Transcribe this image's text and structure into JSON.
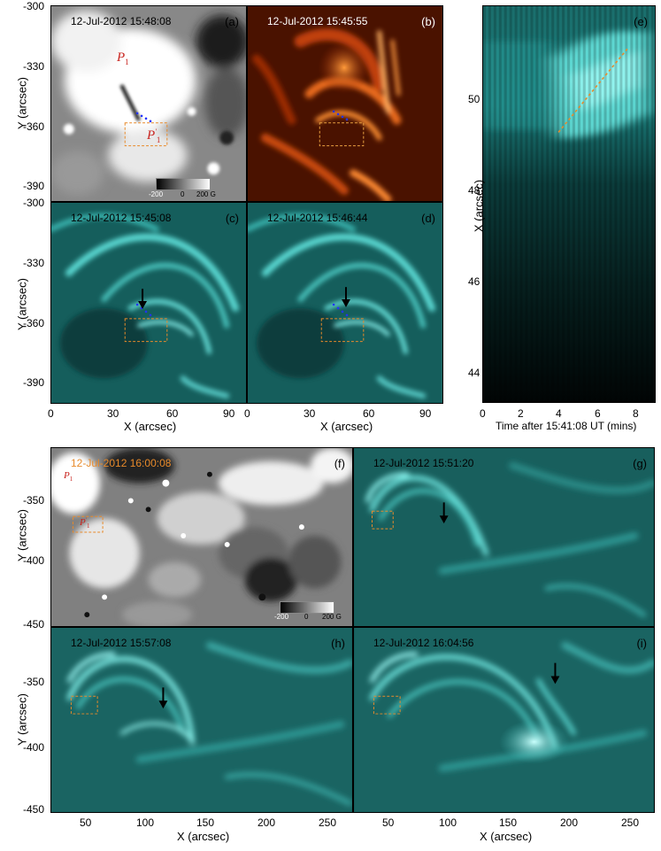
{
  "panels": {
    "a": {
      "timestamp": "12-Jul-2012 15:48:08",
      "label": "(a)",
      "annot_p1": "P",
      "annot_p1_sub": "1",
      "annot_p1p": "P",
      "annot_p1p_sub": "1",
      "cbar": [
        "-200",
        "0",
        "200 G"
      ]
    },
    "b": {
      "timestamp": "12-Jul-2012 15:45:55",
      "label": "(b)"
    },
    "c": {
      "timestamp": "12-Jul-2012 15:45:08",
      "label": "(c)"
    },
    "d": {
      "timestamp": "12-Jul-2012 15:46:44",
      "label": "(d)"
    },
    "e": {
      "label": "(e)"
    },
    "f": {
      "timestamp": "12-Jul-2012 16:00:08",
      "label": "(f)",
      "annot_p1": "P",
      "annot_p1_sub": "1",
      "annot_p1p": "P",
      "annot_p1p_sub": "1",
      "cbar": [
        "-200",
        "0",
        "200 G"
      ]
    },
    "g": {
      "timestamp": "12-Jul-2012 15:51:20",
      "label": "(g)"
    },
    "h": {
      "timestamp": "12-Jul-2012 15:57:08",
      "label": "(h)"
    },
    "i": {
      "timestamp": "12-Jul-2012 16:04:56",
      "label": "(i)"
    }
  },
  "axes": {
    "top_y_label": "Y (arcsec)",
    "top_y_ticks": [
      "-300",
      "-330",
      "-360",
      "-390"
    ],
    "top_x_label": "X (arcsec)",
    "top_x_ticks": [
      "0",
      "30",
      "60",
      "90"
    ],
    "e_y_label": "X (arcsec)",
    "e_y_ticks": [
      "50",
      "48",
      "46",
      "44"
    ],
    "e_x_label": "Time after 15:41:08 UT (mins)",
    "e_x_ticks": [
      "0",
      "2",
      "4",
      "6",
      "8"
    ],
    "bot_y_label": "Y (arcsec)",
    "bot_y_ticks": [
      "-350",
      "-400",
      "-450"
    ],
    "bot_x_label": "X (arcsec)",
    "bot_x_ticks": [
      "50",
      "100",
      "150",
      "200",
      "250"
    ]
  },
  "colors": {
    "aia_cyan": "#3fd0cc",
    "aia_red": "#c0440a",
    "box_orange": "#e88a2a",
    "dot_blue": "#2233ff"
  }
}
